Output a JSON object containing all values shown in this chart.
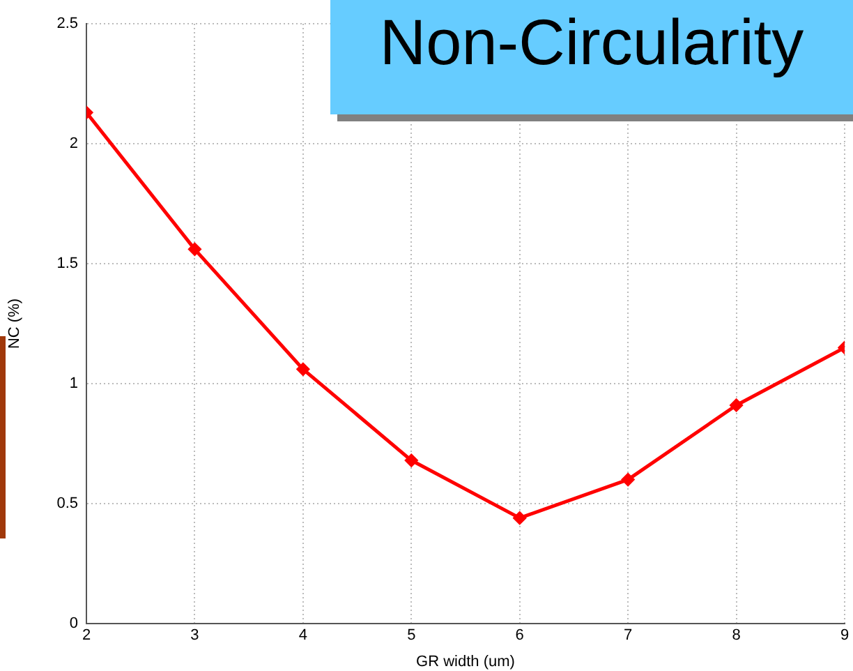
{
  "chart_data": {
    "type": "line",
    "title": "Non-Circularity",
    "xlabel": "GR width (um)",
    "ylabel": "NC (%)",
    "x": [
      2,
      3,
      4,
      5,
      6,
      7,
      8,
      9
    ],
    "series": [
      {
        "color": "#ff0000",
        "values": [
          2.13,
          1.56,
          1.06,
          0.68,
          0.44,
          0.6,
          0.91,
          1.15
        ]
      }
    ],
    "xlim": [
      2,
      9
    ],
    "xticks": [
      2,
      3,
      4,
      5,
      6,
      7,
      8,
      9
    ],
    "ylim": [
      0,
      2.5
    ],
    "yticks": [
      0,
      0.5,
      1,
      1.5,
      2,
      2.5
    ],
    "grid": true,
    "legend": false,
    "marker": "diamond",
    "line_style": "solid"
  }
}
